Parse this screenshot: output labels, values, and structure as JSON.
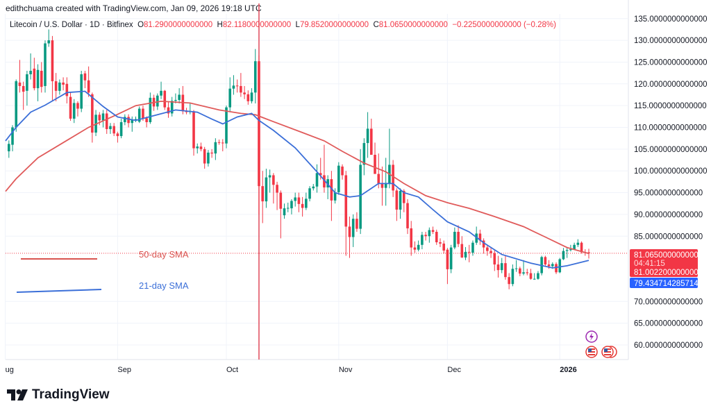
{
  "header": {
    "credit": "edithchuama created with TradingView.com, Jan 09, 2026 19:18 UTC",
    "symbol": "Litecoin / U.S. Dollar · 1D · Bitfinex",
    "open_label": "O",
    "open": "81.2900000000000",
    "high_label": "H",
    "high": "82.1180000000000",
    "low_label": "L",
    "low": "79.8520000000000",
    "close_label": "C",
    "close": "81.0650000000000",
    "change": "−0.2250000000000 (−0.28%)"
  },
  "annotations": {
    "sma50_label": "50-day SMA",
    "sma21_label": "21-day SMA"
  },
  "price_labels": {
    "last_price": "81.0650000000000",
    "countdown": "04:41:15",
    "sma50_value": "81.0022000000000",
    "sma21_value": "79.4347142857143"
  },
  "branding": {
    "logo_text": "TradingView",
    "logo_icon": "tradingview-logo-icon"
  },
  "icons": [
    "lightning-icon",
    "us-flag-icon",
    "us-flag-icon"
  ],
  "colors": {
    "up": "#089981",
    "down": "#f23645",
    "sma50": "#e05a5a",
    "sma21": "#3b6fd8",
    "grid": "#f0f3fa"
  },
  "chart_data": {
    "type": "candlestick",
    "symbol": "Litecoin / U.S. Dollar",
    "interval": "1D",
    "exchange": "Bitfinex",
    "last_date": "2026-01-09",
    "ylim": [
      57,
      136
    ],
    "y_ticks": [
      "135.0000000000000",
      "130.0000000000000",
      "125.0000000000000",
      "120.0000000000000",
      "115.0000000000000",
      "110.0000000000000",
      "105.0000000000000",
      "100.0000000000000",
      "95.0000000000000",
      "90.0000000000000",
      "85.0000000000000",
      "70.0000000000000",
      "65.0000000000000",
      "60.0000000000000"
    ],
    "x_ticks": [
      {
        "label": "ug",
        "date": "2025-08-01"
      },
      {
        "label": "Sep",
        "date": "2025-09-01"
      },
      {
        "label": "Oct",
        "date": "2025-10-01"
      },
      {
        "label": "Nov",
        "date": "2025-11-01"
      },
      {
        "label": "Dec",
        "date": "2025-12-01"
      },
      {
        "label": "2026",
        "date": "2026-01-01",
        "bold": true
      }
    ],
    "vertical_marker_date": "2025-10-10",
    "grid": true,
    "candles_ohlc": [
      [
        104.5,
        107,
        103,
        106.2
      ],
      [
        106,
        110.5,
        104.5,
        110
      ],
      [
        110,
        121,
        109,
        120.6
      ],
      [
        120.3,
        125.5,
        118,
        119.5
      ],
      [
        119.5,
        120.5,
        114,
        118.2
      ],
      [
        118.4,
        123,
        115,
        122.2
      ],
      [
        122.2,
        127,
        121,
        123
      ],
      [
        123.5,
        126,
        118.5,
        119
      ],
      [
        119,
        124.5,
        116,
        123.2
      ],
      [
        123,
        125,
        118,
        119.3
      ],
      [
        119.5,
        130,
        118,
        129.3
      ],
      [
        129.3,
        132.5,
        128.5,
        130
      ],
      [
        130,
        131,
        116,
        120.6
      ],
      [
        120.6,
        122.5,
        116,
        118.4
      ],
      [
        118.4,
        121,
        117.5,
        120.3
      ],
      [
        120.3,
        121.5,
        118.5,
        119.8
      ],
      [
        120,
        121.5,
        115.5,
        117.2
      ],
      [
        117,
        118,
        111.5,
        112
      ],
      [
        112,
        116.5,
        111,
        115.6
      ],
      [
        115.6,
        116,
        112.5,
        114.3
      ],
      [
        114.3,
        123,
        113.5,
        122.2
      ],
      [
        122.4,
        123,
        119,
        120.8
      ],
      [
        120.8,
        124,
        117,
        118
      ],
      [
        117.6,
        118,
        106.5,
        108.8
      ],
      [
        108.8,
        114,
        108,
        112.9
      ],
      [
        112.9,
        113.5,
        110.5,
        111.6
      ],
      [
        111.6,
        114,
        110,
        113.2
      ],
      [
        113.2,
        114,
        108.5,
        109.6
      ],
      [
        109.6,
        111,
        108.5,
        110.3
      ],
      [
        110.3,
        111,
        108,
        108.6
      ],
      [
        108.6,
        109,
        106.5,
        108
      ],
      [
        108,
        112,
        107.5,
        111.2
      ],
      [
        111.2,
        113,
        110.5,
        112.4
      ],
      [
        112.4,
        113,
        110,
        111
      ],
      [
        111,
        112.5,
        109,
        111.8
      ],
      [
        111.8,
        112.5,
        111.2,
        111.9
      ],
      [
        111.3,
        114.8,
        111,
        114.3
      ],
      [
        114.3,
        115,
        111.5,
        112.1
      ],
      [
        112.1,
        112.5,
        110,
        111.2
      ],
      [
        111.2,
        118,
        110.8,
        116.8
      ],
      [
        116.8,
        117.5,
        113.8,
        114.8
      ],
      [
        114.8,
        117.8,
        114,
        117.3
      ],
      [
        117.3,
        120.5,
        116.5,
        118.4
      ],
      [
        118.4,
        118.6,
        114,
        114.6
      ],
      [
        114.6,
        116,
        112.2,
        113.2
      ],
      [
        113.2,
        117,
        112.5,
        116.1
      ],
      [
        116.1,
        117.8,
        115.5,
        116.3
      ],
      [
        116.3,
        119,
        115.5,
        117.5
      ],
      [
        117.5,
        119.5,
        113,
        113.7
      ],
      [
        113.7,
        114.5,
        113,
        113.5
      ],
      [
        113.5,
        115.5,
        113,
        113.7
      ],
      [
        113.7,
        114,
        103.5,
        105.2
      ],
      [
        105.2,
        106.3,
        104,
        105.6
      ],
      [
        105.6,
        106.5,
        104.5,
        105
      ],
      [
        105,
        105.5,
        100.5,
        101.7
      ],
      [
        101.7,
        104.8,
        101,
        104.2
      ],
      [
        104.2,
        105,
        103,
        104
      ],
      [
        104,
        107.5,
        102.5,
        106.6
      ],
      [
        106.6,
        107.2,
        106,
        106.5
      ],
      [
        106.5,
        107.3,
        104.5,
        106.4
      ],
      [
        106.3,
        115,
        105.2,
        114.6
      ],
      [
        114.6,
        121.5,
        113.5,
        118.9
      ],
      [
        118.9,
        122,
        117.5,
        119.6
      ],
      [
        119.6,
        121,
        118,
        119.5
      ],
      [
        119.5,
        122.5,
        117,
        118
      ],
      [
        118,
        119.5,
        116.5,
        117.6
      ],
      [
        117.6,
        118.5,
        115.2,
        116
      ],
      [
        116,
        119,
        115.5,
        118
      ],
      [
        118,
        128,
        115.5,
        125.2
      ],
      [
        125.2,
        126.5,
        90,
        96.5
      ],
      [
        96.5,
        100,
        88,
        93
      ],
      [
        93,
        100.5,
        91.5,
        98.5
      ],
      [
        98.5,
        100.3,
        95,
        99
      ],
      [
        99,
        99.5,
        92.5,
        96.8
      ],
      [
        96.8,
        97.5,
        91,
        95
      ],
      [
        95,
        95.5,
        84.5,
        91.3
      ],
      [
        89.8,
        92.5,
        89,
        91.4
      ],
      [
        91.4,
        92.7,
        90.5,
        91.5
      ],
      [
        91.4,
        93.5,
        90,
        93.1
      ],
      [
        93.1,
        95,
        91.8,
        93.9
      ],
      [
        93.9,
        95,
        90.5,
        92.4
      ],
      [
        92.4,
        94,
        89.5,
        91.5
      ],
      [
        91.5,
        95,
        91,
        93.6
      ],
      [
        93.6,
        96.5,
        93,
        96
      ],
      [
        96,
        97,
        95.5,
        96.4
      ],
      [
        96.4,
        101.5,
        95,
        99.5
      ],
      [
        99.5,
        103,
        98,
        99
      ],
      [
        99,
        106,
        95,
        96.2
      ],
      [
        96.2,
        99,
        93.5,
        98.1
      ],
      [
        98.1,
        100,
        88.5,
        93.2
      ],
      [
        93.2,
        96,
        92.5,
        95.1
      ],
      [
        95.1,
        102,
        94.5,
        101.2
      ],
      [
        101,
        101.5,
        98,
        99
      ],
      [
        99,
        100,
        80.5,
        87.2
      ],
      [
        87.2,
        89.5,
        80,
        84.8
      ],
      [
        84.8,
        90,
        82.5,
        89
      ],
      [
        89,
        90.5,
        86,
        86.7
      ],
      [
        86.7,
        105,
        85.5,
        101.4
      ],
      [
        101.4,
        107.5,
        99,
        106.4
      ],
      [
        106.4,
        113.5,
        103,
        109.7
      ],
      [
        109.7,
        112,
        106,
        103.7
      ],
      [
        103.7,
        106.5,
        100,
        99.3
      ],
      [
        99.3,
        104,
        96,
        97.1
      ],
      [
        97.1,
        101,
        92,
        96.1
      ],
      [
        96.1,
        103,
        92,
        97.1
      ],
      [
        97.1,
        109.7,
        96,
        101.4
      ],
      [
        101.4,
        102.5,
        94,
        95.5
      ],
      [
        95.5,
        96,
        88.5,
        91.1
      ],
      [
        91.1,
        96,
        89,
        95.4
      ],
      [
        95.4,
        95.8,
        90.5,
        92.6
      ],
      [
        92.6,
        93.5,
        85.5,
        86.8
      ],
      [
        86.8,
        88.5,
        80.5,
        82.4
      ],
      [
        82.4,
        83.8,
        81.2,
        81.9
      ],
      [
        81.9,
        84,
        81.5,
        83
      ],
      [
        83,
        86,
        82,
        85.3
      ],
      [
        85.3,
        86,
        84,
        85
      ],
      [
        85,
        87,
        83.5,
        86.4
      ],
      [
        86.4,
        87.2,
        85.5,
        86
      ],
      [
        86,
        86.5,
        83,
        83.6
      ],
      [
        83.6,
        84.5,
        82.5,
        83.3
      ],
      [
        83.3,
        84,
        81,
        81.7
      ],
      [
        81.9,
        82.3,
        74,
        77.4
      ],
      [
        77.4,
        83,
        76.5,
        82.4
      ],
      [
        82.4,
        87,
        82,
        86
      ],
      [
        86,
        87.5,
        82.5,
        83.2
      ],
      [
        83.2,
        85,
        80,
        80.1
      ],
      [
        80.1,
        82.5,
        79.5,
        81.4
      ],
      [
        81.4,
        83,
        79,
        81.3
      ],
      [
        81.2,
        84,
        80.5,
        83.5
      ],
      [
        83.5,
        87.2,
        83,
        85.6
      ],
      [
        85.6,
        86.5,
        83,
        84
      ],
      [
        84,
        84.5,
        81,
        82.4
      ],
      [
        82.4,
        83,
        80.5,
        81.6
      ],
      [
        81.6,
        82.5,
        80,
        81.1
      ],
      [
        81.1,
        82,
        77,
        78.5
      ],
      [
        78.5,
        80.5,
        75.5,
        77.2
      ],
      [
        77.2,
        80,
        76.5,
        78.8
      ],
      [
        78.8,
        80.5,
        75,
        75.6
      ],
      [
        75.6,
        76.5,
        72.8,
        74
      ],
      [
        74,
        78.5,
        73.5,
        77.5
      ],
      [
        77.5,
        79.5,
        76.8,
        77.6
      ],
      [
        77.6,
        78,
        75.8,
        76.4
      ],
      [
        76.4,
        79.5,
        76,
        76.7
      ],
      [
        76.7,
        77.5,
        76,
        76.5
      ],
      [
        76.5,
        77.5,
        75,
        75.2
      ],
      [
        75.2,
        76.5,
        75,
        75.2
      ],
      [
        75.2,
        77,
        75,
        76.5
      ],
      [
        76.5,
        80.5,
        76,
        80.2
      ],
      [
        80.2,
        80.5,
        78,
        78.5
      ],
      [
        78.5,
        79.5,
        77.5,
        78.1
      ],
      [
        78.1,
        79,
        77.5,
        78.6
      ],
      [
        78.6,
        79,
        76.3,
        76.7
      ],
      [
        76.7,
        80,
        76.5,
        79.7
      ],
      [
        79.7,
        82.3,
        79.5,
        81.6
      ],
      [
        81.6,
        82.3,
        80,
        81.8
      ],
      [
        81.8,
        83,
        81.5,
        82
      ],
      [
        82,
        83.5,
        81.8,
        83
      ],
      [
        83,
        84.3,
        82.5,
        83.5
      ],
      [
        83.5,
        83.8,
        81,
        81.3
      ],
      [
        81.3,
        82,
        80.5,
        81.29
      ],
      [
        81.29,
        82.118,
        79.852,
        81.065
      ]
    ],
    "series": [
      {
        "name": "50-day SMA",
        "type": "line",
        "points": [
          [
            "2025-07-31",
            95.3
          ],
          [
            "2025-08-04",
            98.2
          ],
          [
            "2025-08-10",
            103
          ],
          [
            "2025-08-18",
            107
          ],
          [
            "2025-08-24",
            110
          ],
          [
            "2025-09-01",
            113
          ],
          [
            "2025-09-06",
            115
          ],
          [
            "2025-09-13",
            116
          ],
          [
            "2025-09-21",
            115.6
          ],
          [
            "2025-09-29",
            114
          ],
          [
            "2025-10-05",
            113.2
          ],
          [
            "2025-10-09",
            112.9
          ],
          [
            "2025-10-14",
            111.3
          ],
          [
            "2025-10-22",
            108.8
          ],
          [
            "2025-10-28",
            106.9
          ],
          [
            "2025-11-02",
            104.5
          ],
          [
            "2025-11-08",
            101.8
          ],
          [
            "2025-11-14",
            99.8
          ],
          [
            "2025-11-19",
            97.1
          ],
          [
            "2025-11-25",
            94.3
          ],
          [
            "2025-12-01",
            92.7
          ],
          [
            "2025-12-07",
            91.4
          ],
          [
            "2025-12-14",
            89.5
          ],
          [
            "2025-12-22",
            87.2
          ],
          [
            "2025-12-28",
            84.8
          ],
          [
            "2026-01-03",
            82.4
          ],
          [
            "2026-01-09",
            81.0022
          ]
        ]
      },
      {
        "name": "21-day SMA",
        "type": "line",
        "points": [
          [
            "2025-07-31",
            106.9
          ],
          [
            "2025-08-04",
            110
          ],
          [
            "2025-08-08",
            113.5
          ],
          [
            "2025-08-12",
            115.1
          ],
          [
            "2025-08-18",
            118
          ],
          [
            "2025-08-23",
            118.3
          ],
          [
            "2025-08-28",
            114.8
          ],
          [
            "2025-09-01",
            112.4
          ],
          [
            "2025-09-06",
            111.6
          ],
          [
            "2025-09-12",
            112.9
          ],
          [
            "2025-09-17",
            114
          ],
          [
            "2025-09-23",
            113.5
          ],
          [
            "2025-09-27",
            111.9
          ],
          [
            "2025-09-30",
            110.8
          ],
          [
            "2025-10-04",
            112.4
          ],
          [
            "2025-10-08",
            113.2
          ],
          [
            "2025-10-10",
            111.6
          ],
          [
            "2025-10-14",
            109.3
          ],
          [
            "2025-10-20",
            105.3
          ],
          [
            "2025-10-26",
            99.8
          ],
          [
            "2025-10-31",
            95
          ],
          [
            "2025-11-04",
            94
          ],
          [
            "2025-11-07",
            94.3
          ],
          [
            "2025-11-12",
            97.1
          ],
          [
            "2025-11-16",
            97.1
          ],
          [
            "2025-11-19",
            95
          ],
          [
            "2025-11-23",
            94
          ],
          [
            "2025-11-27",
            91.1
          ],
          [
            "2025-12-01",
            88.3
          ],
          [
            "2025-12-07",
            86
          ],
          [
            "2025-12-11",
            83.5
          ],
          [
            "2025-12-16",
            80.8
          ],
          [
            "2025-12-24",
            78.8
          ],
          [
            "2025-12-30",
            77.7
          ],
          [
            "2026-01-03",
            78.2
          ],
          [
            "2026-01-09",
            79.4347
          ]
        ]
      }
    ]
  }
}
